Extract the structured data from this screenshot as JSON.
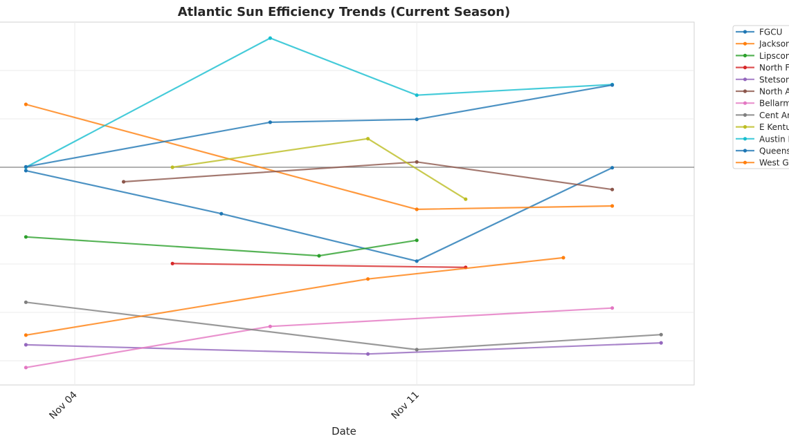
{
  "chart_data": {
    "type": "line",
    "title": "Atlantic Sun Efficiency Trends (Current Season)",
    "xlabel": "Date",
    "ylabel": "",
    "x_ticks": [
      "Nov 04",
      "Nov 11"
    ],
    "xlim": [
      "Nov 02.5",
      "Nov 16.7"
    ],
    "ylim": [
      -4.5,
      3
    ],
    "y_tick_labels_visible": false,
    "reference_line_y": 0,
    "grid": true,
    "legend_position": "outside-right",
    "series": [
      {
        "name": "FGCU",
        "color": "#1f77b4",
        "x": [
          "Nov 03",
          "Nov 07",
          "Nov 11",
          "Nov 15"
        ],
        "y": [
          -0.07,
          -0.96,
          -1.94,
          -0.01
        ]
      },
      {
        "name": "Jackson",
        "color": "#ff7f0e",
        "x": [
          "Nov 03",
          "Nov 11",
          "Nov 15"
        ],
        "y": [
          1.3,
          -0.87,
          -0.8
        ]
      },
      {
        "name": "Lipscon",
        "color": "#2ca02c",
        "x": [
          "Nov 03",
          "Nov 09",
          "Nov 11"
        ],
        "y": [
          -1.44,
          -1.83,
          -1.51
        ]
      },
      {
        "name": "North F",
        "color": "#d62728",
        "x": [
          "Nov 06",
          "Nov 12"
        ],
        "y": [
          -1.99,
          -2.07
        ]
      },
      {
        "name": "Stetson",
        "color": "#9467bd",
        "x": [
          "Nov 03",
          "Nov 10",
          "Nov 16"
        ],
        "y": [
          -3.67,
          -3.86,
          -3.63
        ]
      },
      {
        "name": "North A",
        "color": "#8c564b",
        "x": [
          "Nov 05",
          "Nov 11",
          "Nov 15"
        ],
        "y": [
          -0.3,
          0.11,
          -0.46
        ]
      },
      {
        "name": "Bellarm",
        "color": "#e377c2",
        "x": [
          "Nov 03",
          "Nov 08",
          "Nov 15"
        ],
        "y": [
          -4.14,
          -3.29,
          -2.91
        ]
      },
      {
        "name": "Cent Ar",
        "color": "#7f7f7f",
        "x": [
          "Nov 03",
          "Nov 11",
          "Nov 16"
        ],
        "y": [
          -2.79,
          -3.77,
          -3.46
        ]
      },
      {
        "name": "E Kentu",
        "color": "#bcbd22",
        "x": [
          "Nov 06",
          "Nov 10",
          "Nov 12"
        ],
        "y": [
          0.0,
          0.59,
          -0.66
        ]
      },
      {
        "name": "Austin I",
        "color": "#17becf",
        "x": [
          "Nov 03",
          "Nov 08",
          "Nov 11",
          "Nov 15"
        ],
        "y": [
          0.0,
          2.67,
          1.49,
          1.71
        ]
      },
      {
        "name": "Queens",
        "color": "#1f77b4",
        "x": [
          "Nov 03",
          "Nov 08",
          "Nov 11",
          "Nov 15"
        ],
        "y": [
          0.01,
          0.93,
          0.99,
          1.7
        ]
      },
      {
        "name": "West Ge",
        "color": "#ff7f0e",
        "x": [
          "Nov 03",
          "Nov 10",
          "Nov 14"
        ],
        "y": [
          -3.47,
          -2.31,
          -1.87
        ]
      }
    ]
  }
}
